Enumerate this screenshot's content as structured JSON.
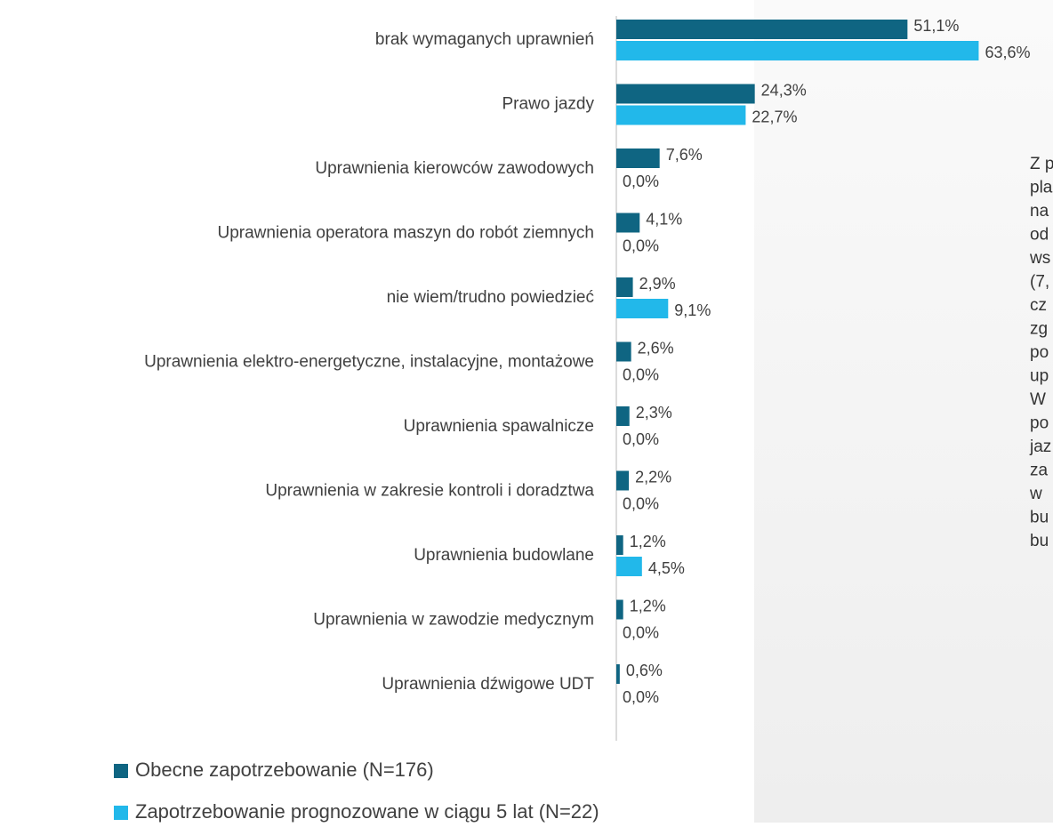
{
  "chart_data": {
    "type": "bar",
    "orientation": "horizontal",
    "categories": [
      "brak wymaganych uprawnień",
      "Prawo jazdy",
      "Uprawnienia kierowców zawodowych",
      "Uprawnienia operatora maszyn do robót ziemnych",
      "nie wiem/trudno powiedzieć",
      "Uprawnienia elektro-energetyczne, instalacyjne, montażowe",
      "Uprawnienia spawalnicze",
      "Uprawnienia w zakresie kontroli i doradztwa",
      "Uprawnienia budowlane",
      "Uprawnienia w zawodzie medycznym",
      "Uprawnienia dźwigowe UDT"
    ],
    "series": [
      {
        "name": "Obecne zapotrzebowanie (N=176)",
        "color": "#0f6582",
        "values": [
          51.1,
          24.3,
          7.6,
          4.1,
          2.9,
          2.6,
          2.3,
          2.2,
          1.2,
          1.2,
          0.6
        ],
        "value_labels": [
          "51,1%",
          "24,3%",
          "7,6%",
          "4,1%",
          "2,9%",
          "2,6%",
          "2,3%",
          "2,2%",
          "1,2%",
          "1,2%",
          "0,6%"
        ]
      },
      {
        "name": "Zapotrzebowanie prognozowane w ciągu 5 lat (N=22)",
        "color": "#22b8ea",
        "values": [
          63.6,
          22.7,
          0.0,
          0.0,
          9.1,
          0.0,
          0.0,
          0.0,
          4.5,
          0.0,
          0.0
        ],
        "value_labels": [
          "63,6%",
          "22,7%",
          "0,0%",
          "0,0%",
          "9,1%",
          "0,0%",
          "0,0%",
          "0,0%",
          "4,5%",
          "0,0%",
          "0,0%"
        ]
      }
    ],
    "xlim": [
      0,
      64
    ]
  },
  "side_text": {
    "lines": [
      "Z p",
      "pla",
      "na",
      "od",
      "ws",
      "(7,",
      "cz",
      "zg",
      "po",
      "up",
      "W",
      "po",
      "jaz",
      "za",
      "w",
      "bu",
      "bu"
    ]
  }
}
